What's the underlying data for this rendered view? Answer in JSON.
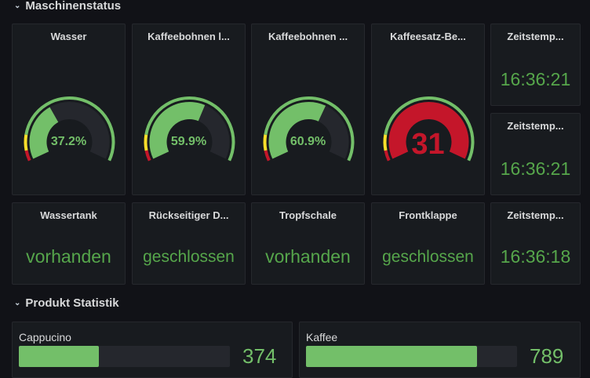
{
  "sections": {
    "machine_status": "Maschinenstatus",
    "product_stats": "Produkt Statistik"
  },
  "gauges": [
    {
      "title": "Wasser",
      "value": 37.2,
      "display": "37.2%",
      "max": 100,
      "color": "#73bf69",
      "value_color": "#73bf69"
    },
    {
      "title": "Kaffeebohnen l...",
      "value": 59.9,
      "display": "59.9%",
      "max": 100,
      "color": "#73bf69",
      "value_color": "#73bf69"
    },
    {
      "title": "Kaffeebohnen ...",
      "value": 60.9,
      "display": "60.9%",
      "max": 100,
      "color": "#73bf69",
      "value_color": "#73bf69"
    },
    {
      "title": "Kaffeesatz-Be...",
      "value": 31,
      "display": "31",
      "max": 31,
      "color": "#c4162a",
      "value_color": "#c4162a"
    }
  ],
  "timestamps": [
    {
      "title": "Zeitstemp...",
      "value": "16:36:21"
    },
    {
      "title": "Zeitstemp...",
      "value": "16:36:21"
    },
    {
      "title": "Zeitstemp...",
      "value": "16:36:18"
    }
  ],
  "status_panels": [
    {
      "title": "Wassertank",
      "value": "vorhanden"
    },
    {
      "title": "Rückseitiger D...",
      "value": "geschlossen"
    },
    {
      "title": "Tropfschale",
      "value": "vorhanden"
    },
    {
      "title": "Frontklappe",
      "value": "geschlossen"
    }
  ],
  "products": [
    {
      "name": "Cappucino",
      "count": "374",
      "fill": 0.38
    },
    {
      "name": "Kaffee",
      "count": "789",
      "fill": 0.81
    }
  ],
  "colors": {
    "green": "#73bf69",
    "dark_green": "#56a64b",
    "red": "#c4162a",
    "yellow": "#fade2a",
    "orange": "#ff9830",
    "track": "#25272d"
  }
}
